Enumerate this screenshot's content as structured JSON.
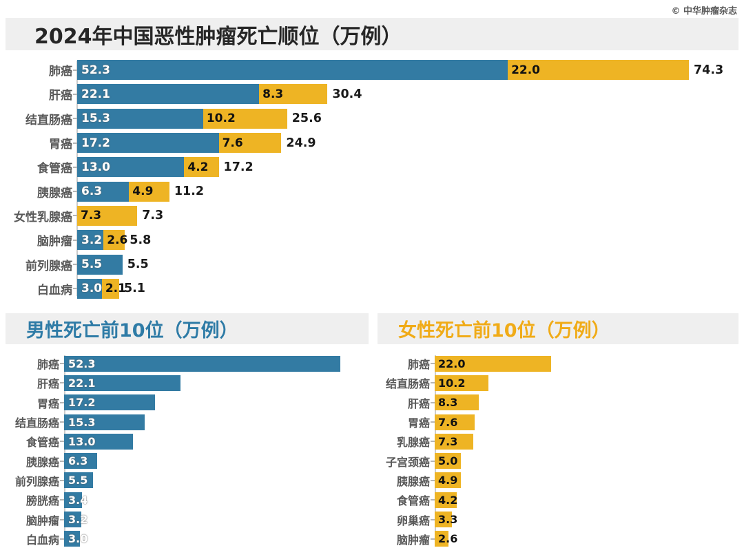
{
  "page": {
    "copyright": "© 中华肿瘤杂志"
  },
  "colors": {
    "male_blue": "#337BA3",
    "female_yellow": "#EEB424",
    "band_gray": "#EFEFEF",
    "male_header_text": "#2E7BA6",
    "female_header_text": "#F0AB17",
    "category_text": "#595959",
    "total_text": "#1A1A1A",
    "copyright_text": "#595959"
  },
  "chart_data": [
    {
      "id": "overall-ranking",
      "type": "bar",
      "orientation": "horizontal",
      "stacked": true,
      "title": "2024年中国恶性肿瘤死亡顺位（万例）",
      "xlim": [
        0,
        74.3
      ],
      "grid": false,
      "legend": "none",
      "rows": [
        {
          "label": "肺癌",
          "blue": 52.3,
          "yellow": 22.0,
          "total": 74.3
        },
        {
          "label": "肝癌",
          "blue": 22.1,
          "yellow": 8.3,
          "total": 30.4
        },
        {
          "label": "结直肠癌",
          "blue": 15.3,
          "yellow": 10.2,
          "total": 25.6
        },
        {
          "label": "胃癌",
          "blue": 17.2,
          "yellow": 7.6,
          "total": 24.9
        },
        {
          "label": "食管癌",
          "blue": 13.0,
          "yellow": 4.2,
          "total": 17.2
        },
        {
          "label": "胰腺癌",
          "blue": 6.3,
          "yellow": 4.9,
          "total": 11.2
        },
        {
          "label": "女性乳腺癌",
          "blue": null,
          "yellow": 7.3,
          "total": 7.3
        },
        {
          "label": "脑肿瘤",
          "blue": 3.2,
          "yellow": 2.6,
          "total": 5.8
        },
        {
          "label": "前列腺癌",
          "blue": 5.5,
          "yellow": null,
          "total": 5.5
        },
        {
          "label": "白血病",
          "blue": 3.0,
          "yellow": 2.1,
          "total": 5.1
        }
      ]
    },
    {
      "id": "male-top10",
      "type": "bar",
      "orientation": "horizontal",
      "stacked": false,
      "title": "男性死亡前10位（万例）",
      "xlim": [
        0,
        52.3
      ],
      "grid": false,
      "legend": "none",
      "rows": [
        {
          "label": "肺癌",
          "value": 52.3
        },
        {
          "label": "肝癌",
          "value": 22.1
        },
        {
          "label": "胃癌",
          "value": 17.2
        },
        {
          "label": "结直肠癌",
          "value": 15.3
        },
        {
          "label": "食管癌",
          "value": 13.0
        },
        {
          "label": "胰腺癌",
          "value": 6.3
        },
        {
          "label": "前列腺癌",
          "value": 5.5
        },
        {
          "label": "膀胱癌",
          "value": 3.4
        },
        {
          "label": "脑肿瘤",
          "value": 3.2
        },
        {
          "label": "白血病",
          "value": 3.0
        }
      ]
    },
    {
      "id": "female-top10",
      "type": "bar",
      "orientation": "horizontal",
      "stacked": false,
      "title": "女性死亡前10位（万例）",
      "xlim": [
        0,
        22.0
      ],
      "grid": false,
      "legend": "none",
      "rows": [
        {
          "label": "肺癌",
          "value": 22.0
        },
        {
          "label": "结直肠癌",
          "value": 10.2
        },
        {
          "label": "肝癌",
          "value": 8.3
        },
        {
          "label": "胃癌",
          "value": 7.6
        },
        {
          "label": "乳腺癌",
          "value": 7.3
        },
        {
          "label": "子宫颈癌",
          "value": 5.0
        },
        {
          "label": "胰腺癌",
          "value": 4.9
        },
        {
          "label": "食管癌",
          "value": 4.2
        },
        {
          "label": "卵巢癌",
          "value": 3.3
        },
        {
          "label": "脑肿瘤",
          "value": 2.6
        }
      ]
    }
  ]
}
